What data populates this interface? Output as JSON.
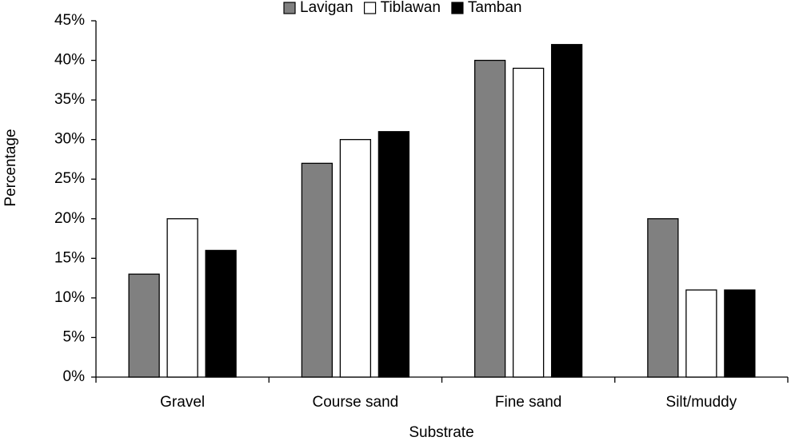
{
  "chart_data": {
    "type": "bar",
    "x_label": "Substrate",
    "y_label": "Percentage",
    "categories": [
      "Gravel",
      "Course sand",
      "Fine sand",
      "Silt/muddy"
    ],
    "series": [
      {
        "name": "Lavigan",
        "color": "#808080",
        "values": [
          13,
          27,
          40,
          20
        ]
      },
      {
        "name": "Tiblawan",
        "color": "#ffffff",
        "values": [
          20,
          30,
          39,
          11
        ]
      },
      {
        "name": "Tamban",
        "color": "#000000",
        "values": [
          16,
          31,
          42,
          11
        ]
      }
    ],
    "ylim": [
      0,
      45
    ],
    "yticks": [
      {
        "value": 0,
        "label": "0%"
      },
      {
        "value": 5,
        "label": "5%"
      },
      {
        "value": 10,
        "label": "10%"
      },
      {
        "value": 15,
        "label": "15%"
      },
      {
        "value": 20,
        "label": "20%"
      },
      {
        "value": 25,
        "label": "25%"
      },
      {
        "value": 30,
        "label": "30%"
      },
      {
        "value": 35,
        "label": "35%"
      },
      {
        "value": 40,
        "label": "40%"
      },
      {
        "value": 45,
        "label": "45%"
      }
    ],
    "grid": false,
    "legend": "top"
  }
}
